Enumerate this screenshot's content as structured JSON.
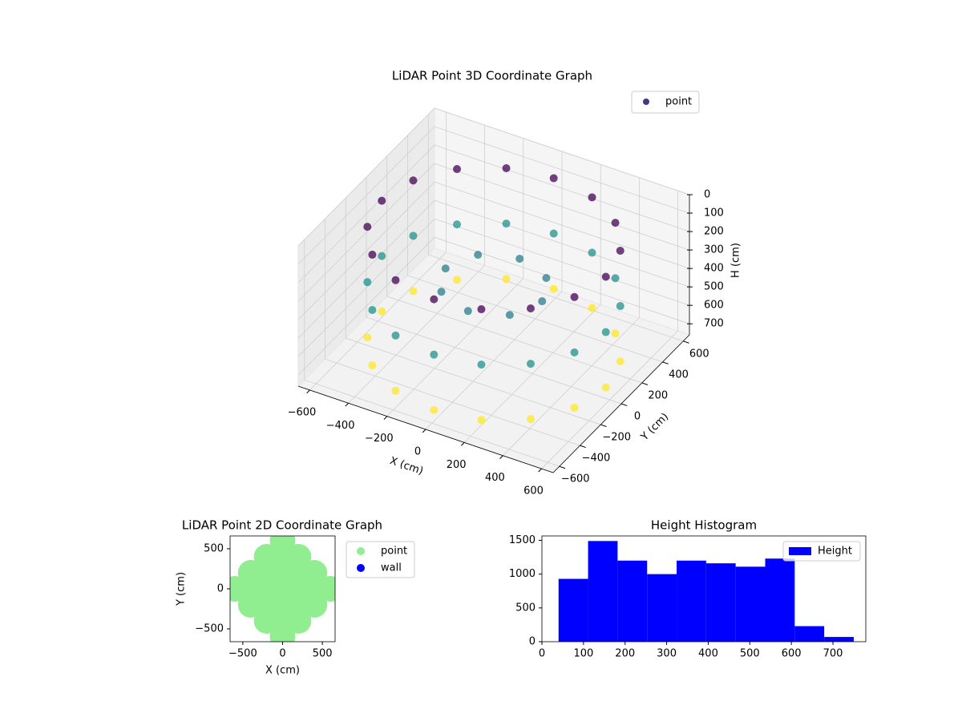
{
  "chart_data": [
    {
      "type": "scatter3d",
      "title": "LiDAR Point 3D Coordinate Graph",
      "xlabel": "X (cm)",
      "ylabel": "Y (cm)",
      "zlabel": "H (cm)",
      "series": [
        {
          "name": "point",
          "color": "#453781",
          "x": [
            580,
            536,
            410,
            222,
            0,
            -222,
            -410,
            -536,
            -580,
            -536,
            -410,
            -222,
            0,
            222,
            410,
            536,
            580,
            536,
            410,
            222,
            0,
            -222,
            -410,
            -536,
            -580,
            -536,
            -410,
            -222,
            0,
            222,
            410,
            536,
            580,
            536,
            410,
            222,
            0,
            -222,
            -410,
            -536,
            -580,
            -536,
            -410,
            -222,
            0,
            222,
            410,
            536,
            250,
            177,
            0,
            -177,
            -250,
            -177,
            0,
            177
          ],
          "y": [
            0,
            222,
            410,
            536,
            580,
            536,
            410,
            222,
            0,
            -222,
            -410,
            -536,
            -580,
            -536,
            -410,
            -222,
            0,
            222,
            410,
            536,
            580,
            536,
            410,
            222,
            0,
            -222,
            -410,
            -536,
            -580,
            -536,
            -410,
            -222,
            0,
            222,
            410,
            536,
            580,
            536,
            410,
            222,
            0,
            -222,
            -410,
            -536,
            -580,
            -536,
            -410,
            -222,
            0,
            177,
            250,
            177,
            0,
            -177,
            -250,
            -177
          ],
          "h": [
            100,
            100,
            100,
            100,
            100,
            100,
            100,
            100,
            100,
            100,
            100,
            100,
            100,
            100,
            100,
            100,
            400,
            400,
            400,
            400,
            400,
            400,
            400,
            400,
            400,
            400,
            400,
            400,
            400,
            400,
            400,
            400,
            700,
            700,
            700,
            700,
            700,
            700,
            700,
            700,
            700,
            700,
            700,
            700,
            700,
            700,
            700,
            700,
            350,
            350,
            350,
            350,
            350,
            350,
            350,
            350
          ]
        }
      ],
      "colormap": [
        "#440154",
        "#3b528b",
        "#21918c",
        "#5ec962",
        "#fde725"
      ],
      "xlim": [
        -660,
        660
      ],
      "ylim": [
        -660,
        660
      ],
      "zlim": [
        760,
        0
      ],
      "xticks": [
        {
          "value": -600,
          "label": "−600"
        },
        {
          "value": -400,
          "label": "−400"
        },
        {
          "value": -200,
          "label": "−200"
        },
        0,
        200,
        400,
        600
      ],
      "yticks": [
        {
          "value": -600,
          "label": "−600"
        },
        {
          "value": -400,
          "label": "−400"
        },
        {
          "value": -200,
          "label": "−200"
        },
        0,
        200,
        400,
        600
      ],
      "zticks": [
        0,
        100,
        200,
        300,
        400,
        500,
        600,
        700
      ],
      "grid": true,
      "legend": "upper right"
    },
    {
      "type": "scatter",
      "title": "LiDAR Point 2D Coordinate Graph",
      "xlabel": "X (cm)",
      "ylabel": "Y (cm)",
      "series": [
        {
          "name": "point",
          "color": "#90ee90",
          "x": [
            -200,
            0,
            200,
            -400,
            -200,
            0,
            200,
            400,
            -400,
            -200,
            0,
            200,
            400,
            -400,
            -200,
            0,
            200,
            400,
            -200,
            0,
            200,
            -600,
            600,
            0,
            0
          ],
          "y": [
            -400,
            -400,
            -400,
            -200,
            -200,
            -200,
            -200,
            -200,
            0,
            0,
            0,
            0,
            0,
            200,
            200,
            200,
            200,
            200,
            400,
            400,
            400,
            0,
            0,
            -600,
            600
          ]
        },
        {
          "name": "wall",
          "color": "#0000ff",
          "x": [],
          "y": []
        }
      ],
      "xlim": [
        -660,
        660
      ],
      "ylim": [
        -660,
        660
      ],
      "xticks": [
        {
          "value": -500,
          "label": "−500"
        },
        0,
        500
      ],
      "yticks": [
        {
          "value": -500,
          "label": "−500"
        },
        0,
        500
      ],
      "legend": "outside right"
    },
    {
      "type": "histogram",
      "title": "Height Histogram",
      "series": [
        {
          "name": "Height",
          "color": "#0000ff",
          "bins": [
            40,
            111,
            182,
            253,
            324,
            395,
            466,
            537,
            608,
            679,
            750
          ],
          "values": [
            930,
            1490,
            1200,
            1000,
            1200,
            1160,
            1110,
            1230,
            230,
            70
          ]
        }
      ],
      "xlim": [
        0,
        779
      ],
      "ylim": [
        0,
        1565
      ],
      "xticks": [
        0,
        100,
        200,
        300,
        400,
        500,
        600,
        700
      ],
      "yticks": [
        0,
        500,
        1000,
        1500
      ],
      "legend": "upper right"
    }
  ]
}
